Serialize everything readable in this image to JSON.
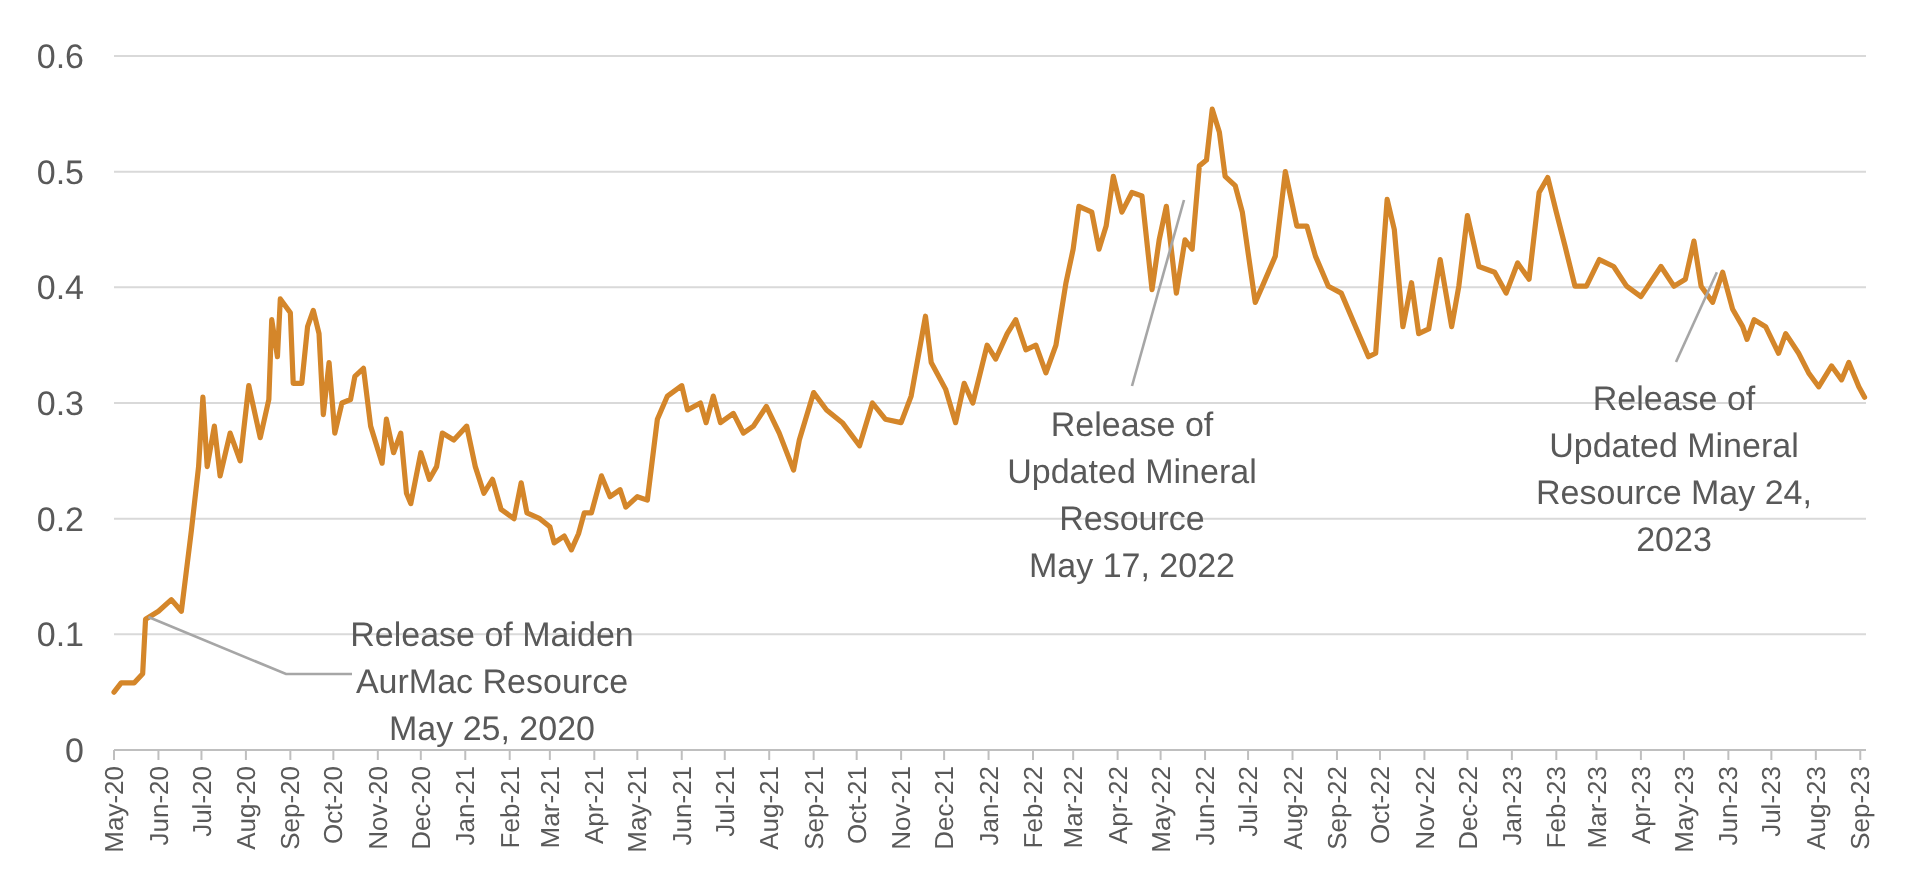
{
  "chart_data": {
    "type": "line",
    "xlim": [
      "2020-05-01",
      "2023-09-05"
    ],
    "ylim": [
      0,
      0.6
    ],
    "yticks": [
      0,
      0.1,
      0.2,
      0.3,
      0.4,
      0.5,
      0.6
    ],
    "grid": "y",
    "marker": "none",
    "line_style": "solid",
    "xticks": [
      {
        "value": "2020-05-01",
        "label": "May-20"
      },
      {
        "value": "2020-06-01",
        "label": "Jun-20"
      },
      {
        "value": "2020-07-01",
        "label": "Jul-20"
      },
      {
        "value": "2020-08-01",
        "label": "Aug-20"
      },
      {
        "value": "2020-09-01",
        "label": "Sep-20"
      },
      {
        "value": "2020-10-01",
        "label": "Oct-20"
      },
      {
        "value": "2020-11-01",
        "label": "Nov-20"
      },
      {
        "value": "2020-12-01",
        "label": "Dec-20"
      },
      {
        "value": "2021-01-01",
        "label": "Jan-21"
      },
      {
        "value": "2021-02-01",
        "label": "Feb-21"
      },
      {
        "value": "2021-03-01",
        "label": "Mar-21"
      },
      {
        "value": "2021-04-01",
        "label": "Apr-21"
      },
      {
        "value": "2021-05-01",
        "label": "May-21"
      },
      {
        "value": "2021-06-01",
        "label": "Jun-21"
      },
      {
        "value": "2021-07-01",
        "label": "Jul-21"
      },
      {
        "value": "2021-08-01",
        "label": "Aug-21"
      },
      {
        "value": "2021-09-01",
        "label": "Sep-21"
      },
      {
        "value": "2021-10-01",
        "label": "Oct-21"
      },
      {
        "value": "2021-11-01",
        "label": "Nov-21"
      },
      {
        "value": "2021-12-01",
        "label": "Dec-21"
      },
      {
        "value": "2022-01-01",
        "label": "Jan-22"
      },
      {
        "value": "2022-02-01",
        "label": "Feb-22"
      },
      {
        "value": "2022-03-01",
        "label": "Mar-22"
      },
      {
        "value": "2022-04-01",
        "label": "Apr-22"
      },
      {
        "value": "2022-05-01",
        "label": "May-22"
      },
      {
        "value": "2022-06-01",
        "label": "Jun-22"
      },
      {
        "value": "2022-07-01",
        "label": "Jul-22"
      },
      {
        "value": "2022-08-01",
        "label": "Aug-22"
      },
      {
        "value": "2022-09-01",
        "label": "Sep-22"
      },
      {
        "value": "2022-10-01",
        "label": "Oct-22"
      },
      {
        "value": "2022-11-01",
        "label": "Nov-22"
      },
      {
        "value": "2022-12-01",
        "label": "Dec-22"
      },
      {
        "value": "2023-01-01",
        "label": "Jan-23"
      },
      {
        "value": "2023-02-01",
        "label": "Feb-23"
      },
      {
        "value": "2023-03-01",
        "label": "Mar-23"
      },
      {
        "value": "2023-04-01",
        "label": "Apr-23"
      },
      {
        "value": "2023-05-01",
        "label": "May-23"
      },
      {
        "value": "2023-06-01",
        "label": "Jun-23"
      },
      {
        "value": "2023-07-01",
        "label": "Jul-23"
      },
      {
        "value": "2023-08-01",
        "label": "Aug-23"
      },
      {
        "value": "2023-09-01",
        "label": "Sep-23"
      }
    ],
    "x": [
      "2020-05-01",
      "2020-05-06",
      "2020-05-15",
      "2020-05-21",
      "2020-05-23",
      "2020-06-01",
      "2020-06-10",
      "2020-06-17",
      "2020-06-24",
      "2020-06-29",
      "2020-07-02",
      "2020-07-05",
      "2020-07-10",
      "2020-07-14",
      "2020-07-21",
      "2020-07-28",
      "2020-08-03",
      "2020-08-11",
      "2020-08-17",
      "2020-08-19",
      "2020-08-23",
      "2020-08-25",
      "2020-09-01",
      "2020-09-03",
      "2020-09-09",
      "2020-09-13",
      "2020-09-17",
      "2020-09-21",
      "2020-09-24",
      "2020-09-28",
      "2020-10-02",
      "2020-10-07",
      "2020-10-13",
      "2020-10-16",
      "2020-10-22",
      "2020-10-27",
      "2020-11-04",
      "2020-11-07",
      "2020-11-12",
      "2020-11-17",
      "2020-11-21",
      "2020-11-24",
      "2020-12-01",
      "2020-12-07",
      "2020-12-12",
      "2020-12-16",
      "2020-12-24",
      "2021-01-02",
      "2021-01-08",
      "2021-01-14",
      "2021-01-20",
      "2021-01-26",
      "2021-02-04",
      "2021-02-09",
      "2021-02-13",
      "2021-02-22",
      "2021-03-01",
      "2021-03-04",
      "2021-03-11",
      "2021-03-16",
      "2021-03-21",
      "2021-03-25",
      "2021-03-30",
      "2021-04-06",
      "2021-04-12",
      "2021-04-19",
      "2021-04-23",
      "2021-05-01",
      "2021-05-08",
      "2021-05-15",
      "2021-05-22",
      "2021-06-01",
      "2021-06-05",
      "2021-06-14",
      "2021-06-18",
      "2021-06-23",
      "2021-06-28",
      "2021-07-07",
      "2021-07-14",
      "2021-07-21",
      "2021-07-30",
      "2021-08-08",
      "2021-08-18",
      "2021-08-22",
      "2021-09-01",
      "2021-09-10",
      "2021-09-21",
      "2021-10-03",
      "2021-10-12",
      "2021-10-21",
      "2021-11-01",
      "2021-11-08",
      "2021-11-18",
      "2021-11-22",
      "2021-12-02",
      "2021-12-09",
      "2021-12-15",
      "2021-12-21",
      "2021-12-31",
      "2022-01-06",
      "2022-01-14",
      "2022-01-20",
      "2022-01-27",
      "2022-02-03",
      "2022-02-10",
      "2022-02-17",
      "2022-02-24",
      "2022-03-01",
      "2022-03-05",
      "2022-03-14",
      "2022-03-19",
      "2022-03-24",
      "2022-03-29",
      "2022-04-04",
      "2022-04-11",
      "2022-04-18",
      "2022-04-25",
      "2022-04-30",
      "2022-05-05",
      "2022-05-12",
      "2022-05-18",
      "2022-05-23",
      "2022-05-28",
      "2022-06-02",
      "2022-06-06",
      "2022-06-11",
      "2022-06-15",
      "2022-06-22",
      "2022-06-27",
      "2022-07-01",
      "2022-07-06",
      "2022-07-11",
      "2022-07-20",
      "2022-07-27",
      "2022-08-04",
      "2022-08-11",
      "2022-08-17",
      "2022-08-26",
      "2022-09-04",
      "2022-09-14",
      "2022-09-23",
      "2022-09-28",
      "2022-10-06",
      "2022-10-11",
      "2022-10-17",
      "2022-10-23",
      "2022-10-28",
      "2022-11-04",
      "2022-11-12",
      "2022-11-20",
      "2022-11-25",
      "2022-12-01",
      "2022-12-09",
      "2022-12-20",
      "2022-12-28",
      "2023-01-05",
      "2023-01-13",
      "2023-01-20",
      "2023-01-26",
      "2023-02-01",
      "2023-02-07",
      "2023-02-14",
      "2023-02-22",
      "2023-03-03",
      "2023-03-13",
      "2023-03-22",
      "2023-04-01",
      "2023-04-15",
      "2023-04-24",
      "2023-05-02",
      "2023-05-08",
      "2023-05-13",
      "2023-05-21",
      "2023-05-28",
      "2023-06-04",
      "2023-06-11",
      "2023-06-14",
      "2023-06-19",
      "2023-06-27",
      "2023-07-06",
      "2023-07-11",
      "2023-07-20",
      "2023-07-27",
      "2023-08-03",
      "2023-08-12",
      "2023-08-19",
      "2023-08-24",
      "2023-08-31",
      "2023-09-04"
    ],
    "series": [
      {
        "color": "#d4862a",
        "values": [
          0.05,
          0.058,
          0.058,
          0.066,
          0.113,
          0.12,
          0.13,
          0.12,
          0.19,
          0.245,
          0.305,
          0.245,
          0.28,
          0.237,
          0.274,
          0.25,
          0.315,
          0.27,
          0.303,
          0.372,
          0.34,
          0.39,
          0.378,
          0.317,
          0.317,
          0.366,
          0.38,
          0.36,
          0.29,
          0.335,
          0.274,
          0.3,
          0.303,
          0.323,
          0.33,
          0.28,
          0.248,
          0.286,
          0.257,
          0.274,
          0.222,
          0.213,
          0.257,
          0.234,
          0.245,
          0.274,
          0.268,
          0.28,
          0.245,
          0.222,
          0.234,
          0.208,
          0.2,
          0.231,
          0.205,
          0.2,
          0.193,
          0.179,
          0.185,
          0.173,
          0.187,
          0.205,
          0.205,
          0.237,
          0.219,
          0.225,
          0.21,
          0.219,
          0.216,
          0.286,
          0.306,
          0.315,
          0.294,
          0.3,
          0.283,
          0.306,
          0.283,
          0.291,
          0.274,
          0.28,
          0.297,
          0.274,
          0.242,
          0.268,
          0.309,
          0.294,
          0.283,
          0.263,
          0.3,
          0.286,
          0.283,
          0.306,
          0.375,
          0.335,
          0.312,
          0.283,
          0.317,
          0.3,
          0.35,
          0.338,
          0.36,
          0.372,
          0.346,
          0.35,
          0.326,
          0.35,
          0.404,
          0.433,
          0.47,
          0.465,
          0.433,
          0.453,
          0.496,
          0.465,
          0.482,
          0.479,
          0.398,
          0.441,
          0.47,
          0.395,
          0.441,
          0.433,
          0.505,
          0.51,
          0.554,
          0.534,
          0.496,
          0.488,
          0.465,
          0.43,
          0.387,
          0.401,
          0.427,
          0.5,
          0.453,
          0.453,
          0.427,
          0.401,
          0.395,
          0.366,
          0.34,
          0.343,
          0.476,
          0.45,
          0.366,
          0.404,
          0.36,
          0.364,
          0.424,
          0.366,
          0.401,
          0.462,
          0.418,
          0.413,
          0.395,
          0.421,
          0.407,
          0.482,
          0.495,
          0.465,
          0.436,
          0.401,
          0.401,
          0.424,
          0.418,
          0.401,
          0.392,
          0.418,
          0.401,
          0.407,
          0.44,
          0.401,
          0.387,
          0.413,
          0.381,
          0.366,
          0.355,
          0.372,
          0.366,
          0.343,
          0.36,
          0.343,
          0.326,
          0.314,
          0.332,
          0.32,
          0.335,
          0.314,
          0.305
        ]
      }
    ],
    "annotations": [
      {
        "text": "Release of Maiden\nAurMac Resource\nMay 25, 2020",
        "x": "2020-05-25",
        "y": 0.115
      },
      "Release of\nUpdated Mineral\nResource\nMay 17, 2022",
      {
        "text": "Release of\nUpdated Mineral\nResource May 24,\n2023",
        "x": "2023-05-24",
        "y": 0.413
      }
    ]
  }
}
